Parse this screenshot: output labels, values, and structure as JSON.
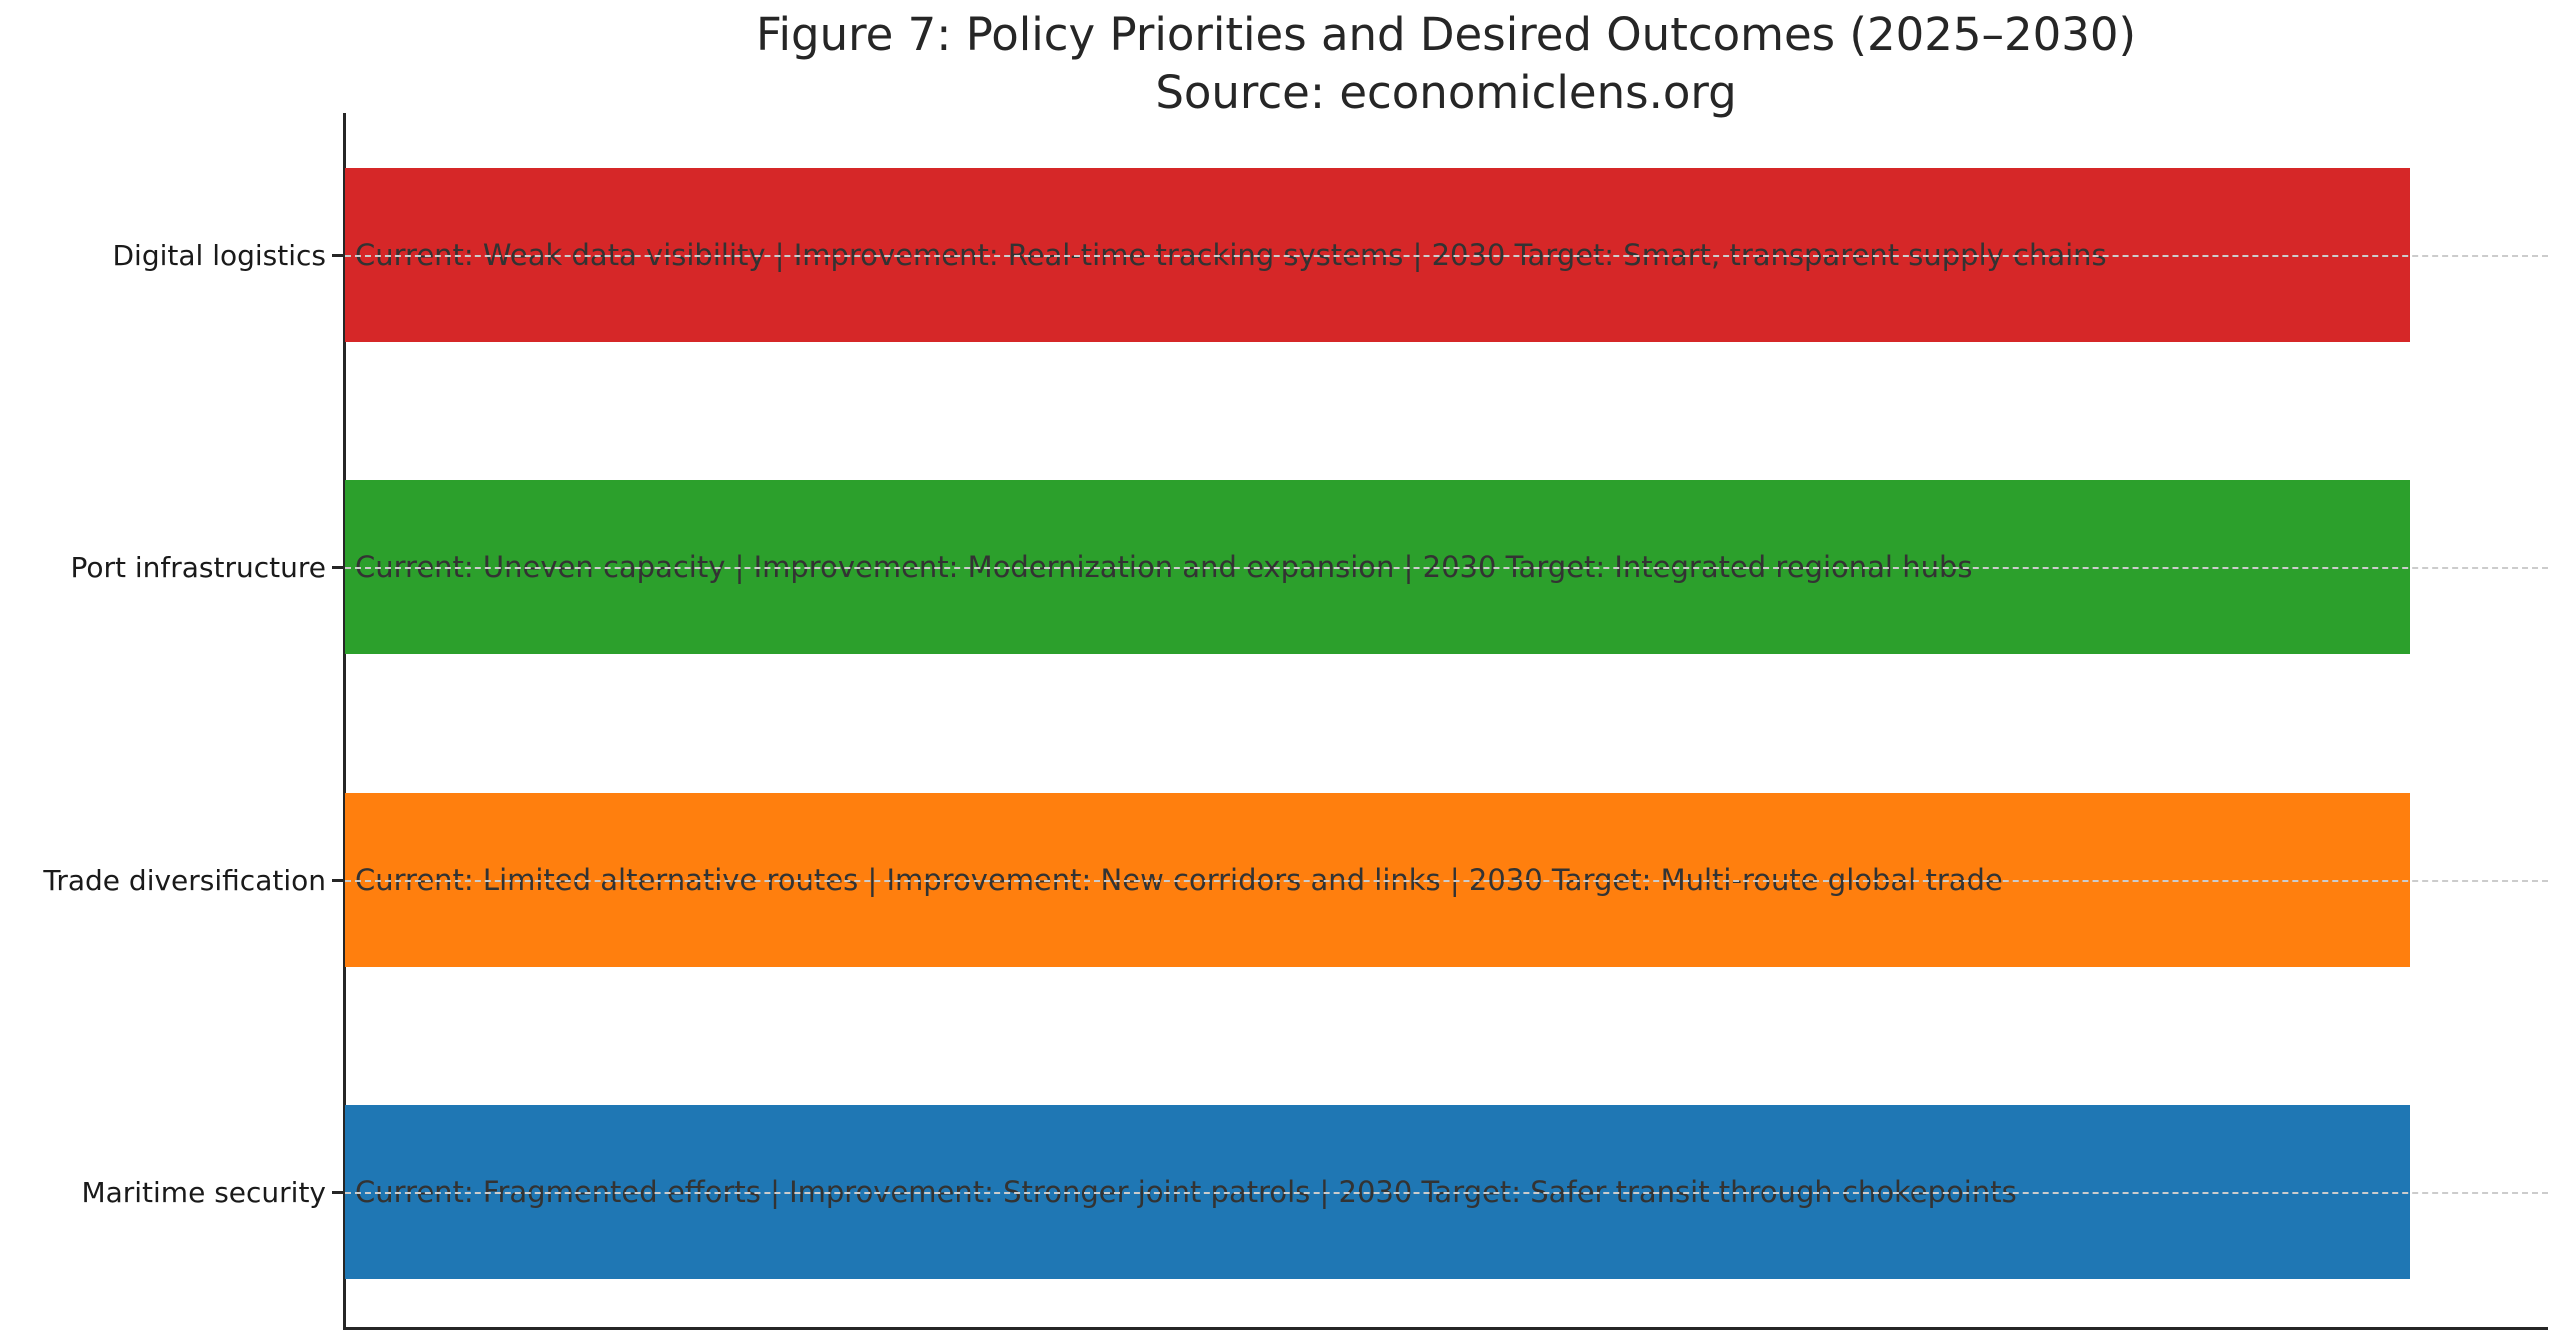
{
  "title": "Figure 7: Policy Priorities and Desired Outcomes (2025–2030)",
  "subtitle": "Source: economiclens.org",
  "chart_data": {
    "type": "bar",
    "orientation": "horizontal",
    "title": "Figure 7: Policy Priorities and Desired Outcomes (2025–2030)",
    "subtitle": "Source: economiclens.org",
    "xlabel": "",
    "ylabel": "",
    "categories": [
      "Digital logistics",
      "Port infrastructure",
      "Trade diversification",
      "Maritime security"
    ],
    "values": [
      1,
      1,
      1,
      1
    ],
    "xlim": [
      0,
      1.07
    ],
    "x_axis_ticks_visible": false,
    "grid": "horizontal dashed gridline through each bar center, drawn over bars",
    "legend": "none",
    "bars": [
      {
        "label": "Digital logistics",
        "annotation": "Current: Weak data visibility | Improvement: Real-time tracking systems | 2030 Target: Smart, transparent supply chains",
        "color": "#d62728",
        "value": 1
      },
      {
        "label": "Port infrastructure",
        "annotation": "Current: Uneven capacity | Improvement: Modernization and expansion | 2030 Target: Integrated regional hubs",
        "color": "#2ca02c",
        "value": 1
      },
      {
        "label": "Trade diversification",
        "annotation": "Current: Limited alternative routes | Improvement: New corridors and links | 2030 Target: Multi-route global trade",
        "color": "#ff7f0e",
        "value": 1
      },
      {
        "label": "Maritime security",
        "annotation": "Current: Fragmented efforts | Improvement: Stronger joint patrols | 2030 Target: Safer transit through chokepoints",
        "color": "#1f77b4",
        "value": 1
      }
    ],
    "colors": {
      "axis_spine": "#262626",
      "tick": "#262626",
      "gridline": "#cccccc",
      "annotation_text": "#333333",
      "title_text": "#262626",
      "background": "#ffffff"
    }
  }
}
